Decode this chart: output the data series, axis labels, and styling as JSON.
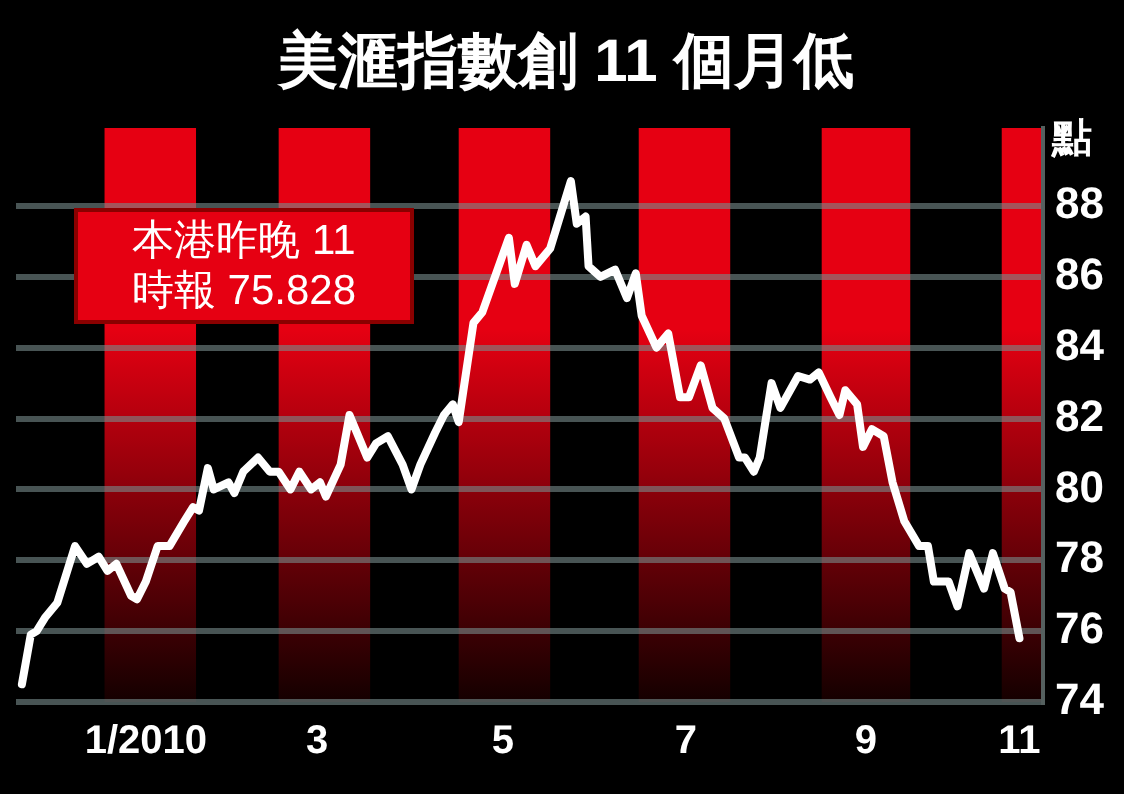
{
  "chart_data": {
    "type": "line",
    "title": "美滙指數創 11 個月低",
    "ylabel": "點",
    "annotations": [
      "本港昨晚 11 時報 75.828"
    ],
    "x": [
      "2009-12-04",
      "2009-12-07",
      "2009-12-09",
      "2009-12-12",
      "2009-12-16",
      "2009-12-22",
      "2009-12-26",
      "2009-12-30",
      "2010-01-02",
      "2010-01-05",
      "2010-01-10",
      "2010-01-12",
      "2010-01-15",
      "2010-01-19",
      "2010-01-23",
      "2010-01-28",
      "2010-01-31",
      "2010-02-02",
      "2010-02-05",
      "2010-02-07",
      "2010-02-12",
      "2010-02-14",
      "2010-02-17",
      "2010-02-22",
      "2010-02-26",
      "2010-03-01",
      "2010-03-05",
      "2010-03-08",
      "2010-03-12",
      "2010-03-15",
      "2010-03-17",
      "2010-03-22",
      "2010-03-25",
      "2010-03-31",
      "2010-04-03",
      "2010-04-07",
      "2010-04-12",
      "2010-04-15",
      "2010-04-18",
      "2010-04-23",
      "2010-04-26",
      "2010-04-29",
      "2010-05-01",
      "2010-05-06",
      "2010-05-09",
      "2010-05-18",
      "2010-05-20",
      "2010-05-24",
      "2010-05-27",
      "2010-06-01",
      "2010-06-08",
      "2010-06-10",
      "2010-06-13",
      "2010-06-14",
      "2010-06-18",
      "2010-06-23",
      "2010-06-27",
      "2010-06-30",
      "2010-07-02",
      "2010-07-07",
      "2010-07-11",
      "2010-07-15",
      "2010-07-18",
      "2010-07-22",
      "2010-07-26",
      "2010-07-30",
      "2010-08-04",
      "2010-08-06",
      "2010-08-09",
      "2010-08-11",
      "2010-08-15",
      "2010-08-18",
      "2010-08-24",
      "2010-08-28",
      "2010-08-31",
      "2010-09-04",
      "2010-09-07",
      "2010-09-09",
      "2010-09-13",
      "2010-09-15",
      "2010-09-18",
      "2010-09-22",
      "2010-09-25",
      "2010-09-29",
      "2010-10-04",
      "2010-10-07",
      "2010-10-09",
      "2010-10-14",
      "2010-10-17",
      "2010-10-21",
      "2010-10-26",
      "2010-10-29",
      "2010-11-02",
      "2010-11-04",
      "2010-11-07"
    ],
    "series": [
      {
        "color": "#ffffff",
        "values": [
          74.5,
          75.9,
          76.0,
          76.4,
          76.8,
          78.4,
          77.9,
          78.1,
          77.7,
          77.9,
          77.0,
          76.9,
          77.4,
          78.4,
          78.4,
          79.1,
          79.5,
          79.4,
          80.6,
          80.0,
          80.2,
          79.9,
          80.5,
          80.9,
          80.5,
          80.5,
          80.0,
          80.5,
          80.0,
          80.2,
          79.8,
          80.7,
          82.1,
          80.9,
          81.3,
          81.5,
          80.7,
          80.0,
          80.7,
          81.6,
          82.1,
          82.4,
          81.9,
          84.7,
          85.0,
          87.1,
          85.8,
          86.9,
          86.3,
          86.8,
          88.7,
          87.5,
          87.7,
          86.3,
          86.0,
          86.2,
          85.4,
          86.1,
          84.9,
          84.0,
          84.4,
          82.6,
          82.6,
          83.5,
          82.3,
          82.0,
          80.9,
          80.9,
          80.5,
          80.9,
          83.0,
          82.3,
          83.2,
          83.1,
          83.3,
          82.6,
          82.1,
          82.8,
          82.4,
          81.2,
          81.7,
          81.5,
          80.2,
          79.1,
          78.4,
          78.4,
          77.4,
          77.4,
          76.7,
          78.2,
          77.2,
          78.2,
          77.2,
          77.1,
          75.8
        ]
      }
    ],
    "xlim": [
      "2009-12-02",
      "2010-11-15"
    ],
    "xticks": [
      {
        "value": "2010-01-15",
        "label": "1/2010"
      },
      {
        "value": "2010-03-14",
        "label": "3"
      },
      {
        "value": "2010-05-16",
        "label": "5"
      },
      {
        "value": "2010-07-17",
        "label": "7"
      },
      {
        "value": "2010-09-16",
        "label": "9"
      },
      {
        "value": "2010-11-07",
        "label": "11"
      }
    ],
    "ylim": [
      74,
      90.2
    ],
    "yticks": [
      74,
      76,
      78,
      80,
      82,
      84,
      86,
      88
    ],
    "bands": [
      {
        "axis": "x",
        "from": "2010-01-01",
        "to": "2010-02-01",
        "color": "#e60012"
      },
      {
        "axis": "x",
        "from": "2010-03-01",
        "to": "2010-04-01",
        "color": "#e60012"
      },
      {
        "axis": "x",
        "from": "2010-05-01",
        "to": "2010-06-01",
        "color": "#e60012"
      },
      {
        "axis": "x",
        "from": "2010-07-01",
        "to": "2010-08-01",
        "color": "#e60012"
      },
      {
        "axis": "x",
        "from": "2010-09-01",
        "to": "2010-10-01",
        "color": "#e60012"
      },
      {
        "axis": "x",
        "from": "2010-11-01",
        "to": "2010-11-15",
        "color": "#e60012"
      }
    ],
    "grid": "y",
    "legend": false,
    "marker": "none",
    "line_style": "solid"
  }
}
